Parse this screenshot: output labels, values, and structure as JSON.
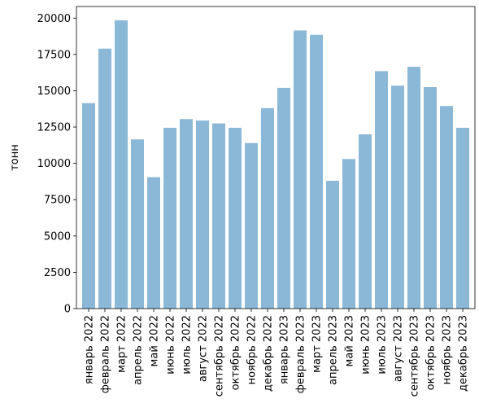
{
  "chart_data": {
    "type": "bar",
    "title": "",
    "xlabel": "",
    "ylabel": "тонн",
    "ylim": [
      0,
      20800
    ],
    "yticks": [
      0,
      2500,
      5000,
      7500,
      10000,
      12500,
      15000,
      17500,
      20000
    ],
    "grid": false,
    "bar_color": "#8cb8d8",
    "categories": [
      "январь 2022",
      "февраль 2022",
      "март 2022",
      "апрель 2022",
      "май 2022",
      "июнь 2022",
      "июль 2022",
      "август 2022",
      "сентябрь 2022",
      "октябрь 2022",
      "ноябрь 2022",
      "декабрь 2022",
      "январь 2023",
      "февраль 2023",
      "март 2023",
      "апрель 2023",
      "май 2023",
      "июнь 2023",
      "июль 2023",
      "август 2023",
      "сентябрь 2023",
      "октябрь 2023",
      "ноябрь 2023",
      "декабрь 2023"
    ],
    "values": [
      14150,
      17900,
      19850,
      11650,
      9050,
      12450,
      13050,
      12950,
      12750,
      12450,
      11400,
      13800,
      15200,
      19150,
      18850,
      8800,
      10300,
      12000,
      16350,
      15350,
      16650,
      15250,
      13950,
      12450
    ]
  }
}
